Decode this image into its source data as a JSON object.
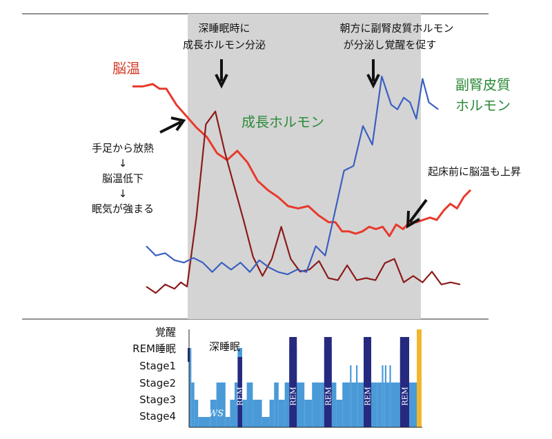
{
  "annotations": {
    "gh_note": [
      "深睡眠時に",
      "成長ホルモン分泌"
    ],
    "cortisol_note": [
      "朝方に副腎皮質ホルモン",
      "が分泌し覚醒を促す"
    ],
    "brain_temp_label": "脳温",
    "gh_label": "成長ホルモン",
    "cortisol_label": [
      "副腎皮質",
      "ホルモン"
    ],
    "heat_note": [
      "手足から放熱",
      "↓",
      "脳温低下",
      "↓",
      "眠気が強まる"
    ],
    "wake_temp_note": "起床前に脳温も上昇",
    "deep_sleep_label": "深睡眠",
    "sws_label": "SWS",
    "rem_label": "REM"
  },
  "hypnogram_levels": [
    "覚醒",
    "REM睡眠",
    "Stage1",
    "Stage2",
    "Stage3",
    "Stage4"
  ],
  "colors": {
    "brain_temp": "#e8392b",
    "growth_hormone": "#8b1a1a",
    "cortisol": "#3a5fc0",
    "night_shade": "#d4d4d4",
    "stage_fill": "#4b9ad8",
    "rem_fill": "#252a80",
    "wake_bar": "#f2b62e"
  },
  "chart_data": {
    "type": "line",
    "series": [
      {
        "name": "脳温",
        "values": [
          [
            0,
            0.04
          ],
          [
            0.03,
            0.04
          ],
          [
            0.06,
            0.03
          ],
          [
            0.08,
            0.05
          ],
          [
            0.1,
            0.05
          ],
          [
            0.13,
            0.12
          ],
          [
            0.16,
            0.17
          ],
          [
            0.19,
            0.22
          ],
          [
            0.22,
            0.26
          ],
          [
            0.25,
            0.33
          ],
          [
            0.28,
            0.36
          ],
          [
            0.31,
            0.32
          ],
          [
            0.34,
            0.37
          ],
          [
            0.37,
            0.45
          ],
          [
            0.4,
            0.49
          ],
          [
            0.43,
            0.52
          ],
          [
            0.46,
            0.56
          ],
          [
            0.49,
            0.57
          ],
          [
            0.52,
            0.56
          ],
          [
            0.55,
            0.6
          ],
          [
            0.58,
            0.63
          ],
          [
            0.6,
            0.63
          ],
          [
            0.62,
            0.67
          ],
          [
            0.64,
            0.67
          ],
          [
            0.66,
            0.68
          ],
          [
            0.68,
            0.67
          ],
          [
            0.7,
            0.65
          ],
          [
            0.72,
            0.66
          ],
          [
            0.74,
            0.65
          ],
          [
            0.76,
            0.69
          ],
          [
            0.78,
            0.64
          ],
          [
            0.8,
            0.66
          ],
          [
            0.82,
            0.63
          ],
          [
            0.84,
            0.63
          ],
          [
            0.86,
            0.62
          ],
          [
            0.88,
            0.61
          ],
          [
            0.9,
            0.62
          ],
          [
            0.92,
            0.58
          ],
          [
            0.94,
            0.55
          ],
          [
            0.96,
            0.57
          ],
          [
            0.98,
            0.52
          ],
          [
            1,
            0.49
          ]
        ]
      },
      {
        "name": "成長ホルモン",
        "values": [
          [
            0,
            0.89
          ],
          [
            0.03,
            0.92
          ],
          [
            0.06,
            0.88
          ],
          [
            0.09,
            0.9
          ],
          [
            0.11,
            0.87
          ],
          [
            0.13,
            0.89
          ],
          [
            0.16,
            0.56
          ],
          [
            0.19,
            0.13
          ],
          [
            0.22,
            0.07
          ],
          [
            0.25,
            0.26
          ],
          [
            0.28,
            0.42
          ],
          [
            0.31,
            0.58
          ],
          [
            0.34,
            0.75
          ],
          [
            0.37,
            0.84
          ],
          [
            0.4,
            0.76
          ],
          [
            0.43,
            0.61
          ],
          [
            0.46,
            0.76
          ],
          [
            0.49,
            0.82
          ],
          [
            0.52,
            0.81
          ],
          [
            0.55,
            0.77
          ],
          [
            0.58,
            0.85
          ],
          [
            0.61,
            0.86
          ],
          [
            0.64,
            0.79
          ],
          [
            0.67,
            0.86
          ],
          [
            0.7,
            0.85
          ],
          [
            0.73,
            0.86
          ],
          [
            0.76,
            0.78
          ],
          [
            0.79,
            0.76
          ],
          [
            0.82,
            0.87
          ],
          [
            0.85,
            0.84
          ],
          [
            0.88,
            0.87
          ],
          [
            0.91,
            0.82
          ],
          [
            0.94,
            0.88
          ],
          [
            0.97,
            0.87
          ],
          [
            1,
            0.88
          ]
        ]
      },
      {
        "name": "副腎皮質ホルモン",
        "values": [
          [
            0,
            0.74
          ],
          [
            0.03,
            0.78
          ],
          [
            0.06,
            0.77
          ],
          [
            0.09,
            0.8
          ],
          [
            0.12,
            0.81
          ],
          [
            0.15,
            0.79
          ],
          [
            0.18,
            0.81
          ],
          [
            0.21,
            0.85
          ],
          [
            0.24,
            0.81
          ],
          [
            0.27,
            0.84
          ],
          [
            0.3,
            0.81
          ],
          [
            0.33,
            0.85
          ],
          [
            0.36,
            0.8
          ],
          [
            0.39,
            0.83
          ],
          [
            0.42,
            0.85
          ],
          [
            0.45,
            0.86
          ],
          [
            0.48,
            0.84
          ],
          [
            0.51,
            0.85
          ],
          [
            0.54,
            0.74
          ],
          [
            0.57,
            0.78
          ],
          [
            0.6,
            0.6
          ],
          [
            0.63,
            0.42
          ],
          [
            0.66,
            0.4
          ],
          [
            0.69,
            0.23
          ],
          [
            0.72,
            0.31
          ],
          [
            0.75,
            0.02
          ],
          [
            0.78,
            0.14
          ],
          [
            0.8,
            0.16
          ],
          [
            0.82,
            0.11
          ],
          [
            0.84,
            0.13
          ],
          [
            0.86,
            0.2
          ],
          [
            0.88,
            0.03
          ],
          [
            0.9,
            0.13
          ],
          [
            0.93,
            0.16
          ]
        ]
      }
    ]
  },
  "hypnogram_data": {
    "segments": [
      [
        "REM睡眠",
        0,
        1.5
      ],
      [
        "Stage2",
        1.5,
        3.5
      ],
      [
        "Stage3",
        3.5,
        6
      ],
      [
        "Stage4",
        6,
        14
      ],
      [
        "Stage3",
        14,
        18
      ],
      [
        "Stage2",
        18,
        24
      ],
      [
        "Stage4",
        24,
        27
      ],
      [
        "Stage3",
        27,
        30
      ],
      [
        "Stage2",
        30,
        32
      ],
      [
        "REM睡眠",
        32,
        35
      ],
      [
        "Stage3",
        35,
        38
      ],
      [
        "Stage2",
        38,
        42
      ],
      [
        "Stage3",
        42,
        48
      ],
      [
        "Stage4",
        48,
        53
      ],
      [
        "Stage3",
        53,
        56
      ],
      [
        "Stage2",
        56,
        59
      ],
      [
        "Stage3",
        59,
        63
      ],
      [
        "Stage2",
        63,
        66
      ],
      [
        "REM睡眠",
        66,
        71
      ],
      [
        "Stage2",
        71,
        76
      ],
      [
        "Stage3",
        76,
        81
      ],
      [
        "Stage2",
        81,
        87
      ],
      [
        "Stage2",
        87,
        89
      ],
      [
        "REM睡眠",
        89,
        94
      ],
      [
        "Stage2",
        94,
        97
      ],
      [
        "Stage3",
        97,
        101
      ],
      [
        "Stage2",
        101,
        106
      ],
      [
        "Stage1",
        106,
        107
      ],
      [
        "Stage2",
        107,
        110
      ],
      [
        "Stage1",
        110,
        111
      ],
      [
        "Stage2",
        111,
        115
      ],
      [
        "REM睡眠",
        115,
        120
      ],
      [
        "Stage2",
        120,
        124
      ],
      [
        "Stage2",
        124,
        127
      ],
      [
        "Stage1",
        127,
        128
      ],
      [
        "Stage2",
        128,
        129
      ],
      [
        "Stage1",
        129,
        130
      ],
      [
        "Stage2",
        130,
        132
      ],
      [
        "Stage1",
        132,
        133
      ],
      [
        "Stage2",
        133,
        139
      ],
      [
        "REM睡眠",
        139,
        145
      ],
      [
        "Stage2",
        145,
        150
      ]
    ],
    "rem_full": [
      [
        32,
        35
      ],
      [
        66,
        71
      ],
      [
        89,
        94
      ],
      [
        115,
        120
      ],
      [
        139,
        145
      ]
    ],
    "wake_at": 150
  }
}
